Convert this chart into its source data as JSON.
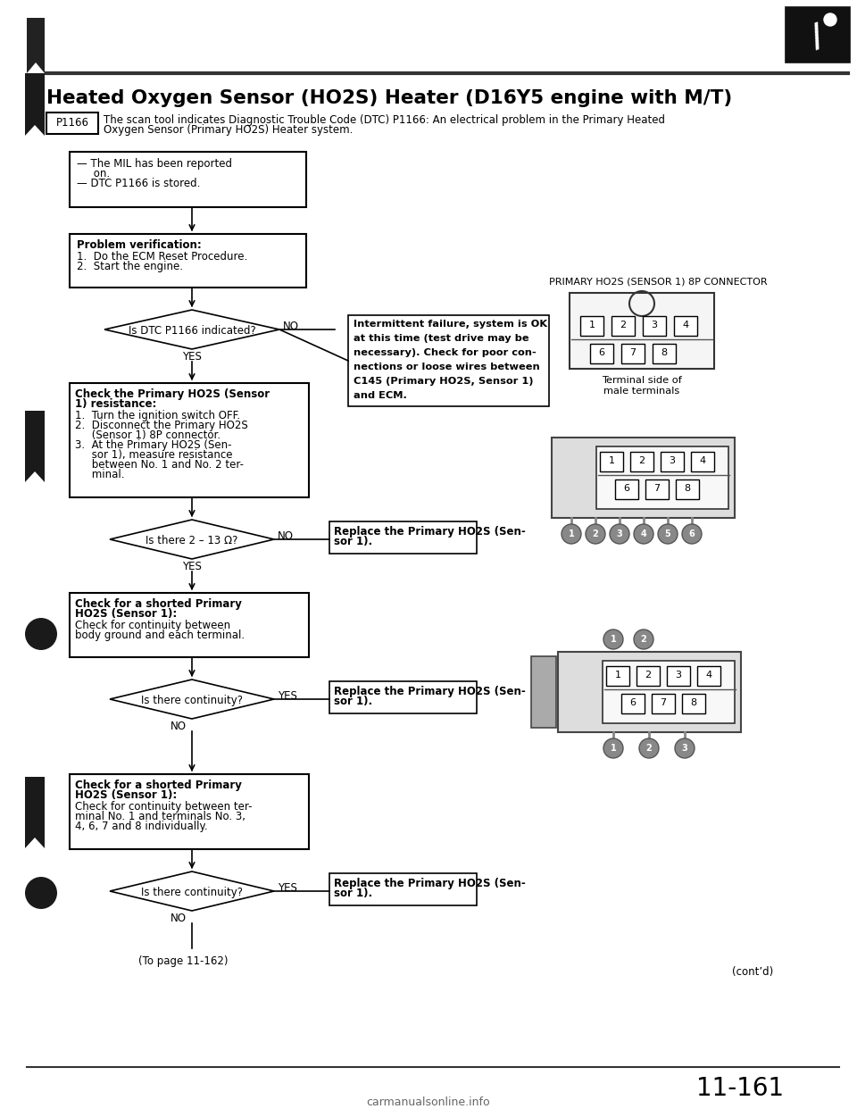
{
  "title": "Heated Oxygen Sensor (HO2S) Heater (D16Y5 engine with M/T)",
  "p1166_label": "P1166",
  "p1166_text1": "The scan tool indicates Diagnostic Trouble Code (DTC) P1166: An electrical problem in the Primary Heated",
  "p1166_text2": "Oxygen Sensor (Primary HO2S) Heater system.",
  "bg_color": "#ffffff",
  "box_border": "#000000",
  "text_color": "#000000",
  "page_num": "11-161",
  "contd": "(cont’d)",
  "right_label": "PRIMARY HO2S (SENSOR 1) 8P CONNECTOR",
  "terminal_label": "Terminal side of\nmale terminals",
  "to_page": "(To page 11-162)",
  "box1_lines": [
    "— The MIL has been reported",
    "     on.",
    "— DTC P1166 is stored."
  ],
  "box2_title": "Problem verification:",
  "box2_lines": [
    "1.  Do the ECM Reset Procedure.",
    "2.  Start the engine."
  ],
  "d1_text": "Is DTC P1166 indicated?",
  "box3_title": "Check the Primary HO2S (Sensor",
  "box3_title2": "1) resistance:",
  "box3_lines": [
    "1.  Turn the ignition switch OFF.",
    "2.  Disconnect the Primary HO2S",
    "     (Sensor 1) 8P connector.",
    "3.  At the Primary HO2S (Sen-",
    "     sor 1), measure resistance",
    "     between No. 1 and No. 2 ter-",
    "     minal."
  ],
  "d2_text": "Is there 2 – 13 Ω?",
  "box4_title": "Check for a shorted Primary",
  "box4_title2": "HO2S (Sensor 1):",
  "box4_lines": [
    "Check for continuity between",
    "body ground and each terminal."
  ],
  "d3_text": "Is there continuity?",
  "box5_title": "Check for a shorted Primary",
  "box5_title2": "HO2S (Sensor 1):",
  "box5_lines": [
    "Check for continuity between ter-",
    "minal No. 1 and terminals No. 3,",
    "4, 6, 7 and 8 individually."
  ],
  "d4_text": "Is there continuity?",
  "rep_text1": "Replace the Primary HO2S (Sen-",
  "rep_text2": "sor 1).",
  "int_text": [
    "Intermittent failure, system is OK",
    "at this time (test drive may be",
    "necessary). Check for poor con-",
    "nections or loose wires between",
    "C145 (Primary HO2S, Sensor 1)",
    "and ECM."
  ]
}
